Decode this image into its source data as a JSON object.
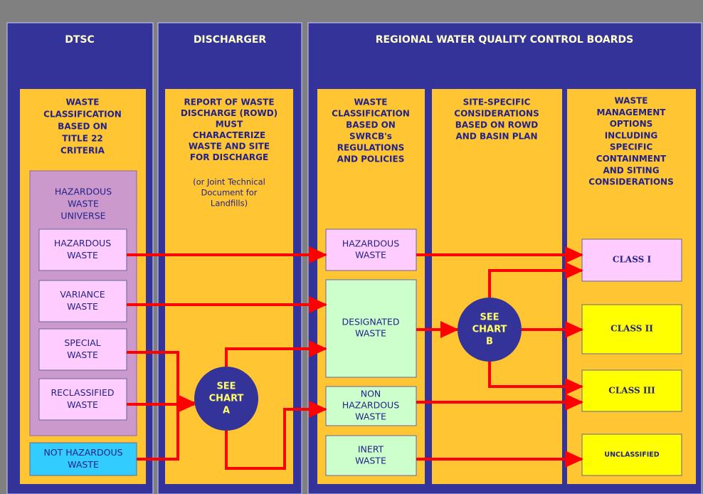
{
  "panels": [
    "DTSC",
    "DISCHARGER",
    "REGIONAL WATER QUALITY CONTROL BOARDS"
  ],
  "dtsc": {
    "heading": [
      "WASTE",
      "CLASSIFICATION",
      "BASED ON",
      "TITLE 22",
      "CRITERIA"
    ],
    "universe": [
      "HAZARDOUS",
      "WASTE",
      "UNIVERSE"
    ],
    "boxes": [
      [
        "HAZARDOUS",
        "WASTE"
      ],
      [
        "VARIANCE",
        "WASTE"
      ],
      [
        "SPECIAL",
        "WASTE"
      ],
      [
        "RECLASSIFIED",
        "WASTE"
      ],
      [
        "NOT HAZARDOUS",
        "WASTE"
      ]
    ]
  },
  "discharger": {
    "heading": [
      "REPORT OF WASTE",
      "DISCHARGE (ROWD)",
      "MUST",
      "CHARACTERIZE",
      "WASTE AND SITE",
      "FOR DISCHARGE"
    ],
    "note": [
      "(or Joint Technical",
      "Document for",
      "Landfills)"
    ],
    "chart": [
      "SEE",
      "CHART",
      "A"
    ]
  },
  "classification": {
    "heading": [
      "WASTE",
      "CLASSIFICATION",
      "BASED ON",
      "SWRCB's",
      "REGULATIONS",
      "AND POLICIES"
    ],
    "boxes": [
      [
        "HAZARDOUS",
        "WASTE"
      ],
      [
        "DESIGNATED",
        "WASTE"
      ],
      [
        "NON",
        "HAZARDOUS",
        "WASTE"
      ],
      [
        "INERT",
        "WASTE"
      ]
    ]
  },
  "site": {
    "heading": [
      "SITE-SPECIFIC",
      "CONSIDERATIONS",
      "BASED ON ROWD",
      "AND BASIN PLAN"
    ],
    "chart": [
      "SEE",
      "CHART",
      "B"
    ]
  },
  "options": {
    "heading": [
      "WASTE",
      "MANAGEMENT",
      "OPTIONS",
      "INCLUDING",
      "SPECIFIC",
      "CONTAINMENT",
      "AND SITING",
      "CONSIDERATIONS"
    ],
    "classes": [
      "CLASS I",
      "CLASS II",
      "CLASS III",
      "UNCLASSIFIED"
    ]
  }
}
